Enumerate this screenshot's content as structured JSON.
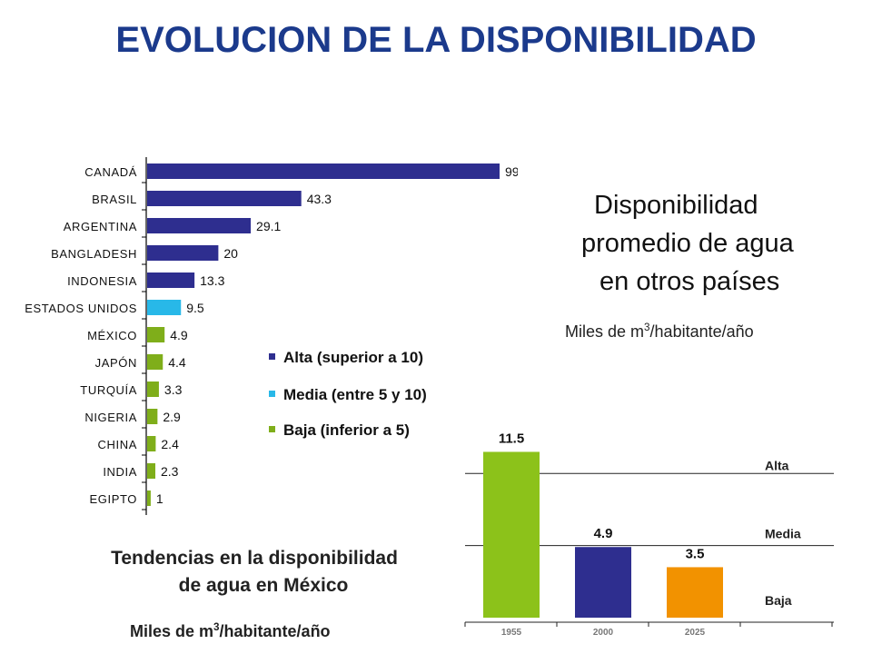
{
  "title": "EVOLUCION DE LA DISPONIBILIDAD",
  "disp_title": [
    "Disponibilidad",
    "promedio de agua",
    "en otros países"
  ],
  "units_world": {
    "prefix": "Miles de m",
    "sup": "3",
    "suffix": "/habitante/año"
  },
  "trend_title": [
    "Tendencias en la disponibilidad",
    "de agua en México"
  ],
  "units_mexico": {
    "prefix": "Miles de m",
    "sup": "3",
    "suffix": "/habitante/año"
  },
  "legend": [
    {
      "label": "Alta (superior a 10)",
      "color": "#2e2e8f"
    },
    {
      "label": "Media (entre 5 y 10)",
      "color": "#28b8e8"
    },
    {
      "label": "Baja (inferior a 5)",
      "color": "#7fae1a"
    }
  ],
  "chart_data": [
    {
      "type": "bar",
      "orientation": "horizontal",
      "categories": [
        "CANADÁ",
        "BRASIL",
        "ARGENTINA",
        "BANGLADESH",
        "INDONESIA",
        "ESTADOS UNIDOS",
        "MÉXICO",
        "JAPÓN",
        "TURQUÍA",
        "NIGERIA",
        "CHINA",
        "INDIA",
        "EGIPTO"
      ],
      "values": [
        99,
        43.3,
        29.1,
        20,
        13.3,
        9.5,
        4.9,
        4.4,
        3.3,
        2.9,
        2.4,
        2.3,
        1
      ],
      "labels": [
        "99",
        "43.3",
        "29.1",
        "20",
        "13.3",
        "9.5",
        "4.9",
        "4.4",
        "3.3",
        "2.9",
        "2.4",
        "2.3",
        "1"
      ],
      "levels": [
        "Alta",
        "Alta",
        "Alta",
        "Alta",
        "Alta",
        "Media",
        "Baja",
        "Baja",
        "Baja",
        "Baja",
        "Baja",
        "Baja",
        "Baja"
      ],
      "colors": {
        "Alta": "#2e2e8f",
        "Media": "#28b8e8",
        "Baja": "#7fae1a"
      },
      "xlim": [
        0,
        99
      ]
    },
    {
      "type": "bar",
      "categories": [
        "1955",
        "2000",
        "2025"
      ],
      "values": [
        11.5,
        4.9,
        3.5
      ],
      "labels": [
        "11.5",
        "4.9",
        "3.5"
      ],
      "colors": [
        "#8cc21a",
        "#2e2e8f",
        "#f29200"
      ],
      "zones": [
        "Alta",
        "Media",
        "Baja"
      ],
      "thresholds": [
        10,
        5
      ],
      "ylim": [
        0,
        12.6
      ]
    }
  ]
}
